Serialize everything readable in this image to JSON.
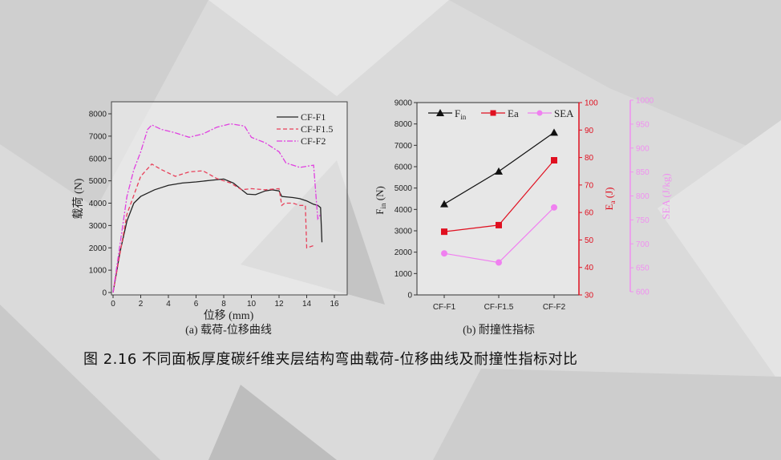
{
  "caption": "图 2.16 不同面板厚度碳纤维夹层结构弯曲载荷-位移曲线及耐撞性指标对比",
  "chart_data": [
    {
      "type": "line",
      "subtitle": "(a) 载荷-位移曲线",
      "xlabel": "位移 (mm)",
      "ylabel": "载荷 (N)",
      "xlim": [
        0,
        16
      ],
      "ylim": [
        0,
        8000
      ],
      "xticks": [
        0,
        2,
        4,
        6,
        8,
        10,
        12,
        14,
        16
      ],
      "yticks": [
        0,
        1000,
        2000,
        3000,
        4000,
        5000,
        6000,
        7000,
        8000
      ],
      "legend_position": "top-right",
      "grid": false,
      "series": [
        {
          "name": "CF-F1",
          "color": "#222222",
          "style": "solid",
          "x": [
            0,
            0.5,
            1,
            1.5,
            2,
            3,
            4,
            5,
            6,
            7,
            8,
            8.7,
            9.3,
            9.7,
            10.3,
            11,
            11.5,
            12,
            12.2,
            13,
            13.5,
            14,
            14.5,
            14.8,
            15,
            15.1
          ],
          "y": [
            0,
            1800,
            3200,
            4000,
            4300,
            4600,
            4800,
            4900,
            4950,
            5020,
            5080,
            4900,
            4600,
            4400,
            4380,
            4550,
            4600,
            4550,
            4300,
            4250,
            4200,
            4100,
            3950,
            3900,
            3800,
            2250
          ]
        },
        {
          "name": "CF-F1.5",
          "color": "#e8405a",
          "style": "dash",
          "x": [
            0,
            1,
            2,
            2.8,
            3.5,
            4.5,
            5.5,
            6.5,
            7.5,
            8.5,
            9.3,
            10,
            11,
            12,
            12.2,
            12.4,
            13,
            13.5,
            13.9,
            14,
            14.5
          ],
          "y": [
            0,
            3500,
            5200,
            5750,
            5500,
            5200,
            5400,
            5450,
            5100,
            4900,
            4600,
            4650,
            4600,
            4650,
            3900,
            4000,
            4000,
            3900,
            3900,
            2000,
            2100
          ]
        },
        {
          "name": "CF-F2",
          "color": "#e040e0",
          "style": "dashdot",
          "x": [
            0,
            1,
            1.5,
            2,
            2.5,
            2.8,
            3.5,
            4.5,
            5.5,
            6.5,
            7.5,
            8.5,
            9.5,
            10,
            11,
            12,
            12.5,
            13.5,
            14.5,
            14.8,
            15
          ],
          "y": [
            0,
            4300,
            5500,
            6300,
            7300,
            7500,
            7300,
            7150,
            6950,
            7100,
            7400,
            7550,
            7450,
            6950,
            6700,
            6300,
            5800,
            5600,
            5700,
            3300,
            3500
          ]
        }
      ]
    },
    {
      "type": "line",
      "subtitle": "(b) 耐撞性指标",
      "categories": [
        "CF-F1",
        "CF-F1.5",
        "CF-F2"
      ],
      "axes": [
        {
          "label": "Fin (N)",
          "label_main": "F",
          "label_sub": "in",
          "label_unit": " (N)",
          "side": "left",
          "color": "#222222",
          "ylim": [
            0,
            9000
          ],
          "ticks": [
            0,
            1000,
            2000,
            3000,
            4000,
            5000,
            6000,
            7000,
            8000,
            9000
          ]
        },
        {
          "label": "Ea (J)",
          "label_main": "E",
          "label_sub": "a",
          "label_unit": " (J)",
          "side": "right",
          "color": "#e01020",
          "ylim": [
            30,
            100
          ],
          "ticks": [
            30,
            40,
            50,
            60,
            70,
            80,
            90,
            100
          ]
        },
        {
          "label": "SEA (J/kg)",
          "side": "right-outer",
          "color": "#f090f0",
          "ylim": [
            600,
            1000
          ],
          "ticks": [
            600,
            650,
            700,
            750,
            800,
            850,
            900,
            950,
            1000
          ]
        }
      ],
      "legend_position": "top",
      "series": [
        {
          "name": "Fin",
          "name_main": "F",
          "name_sub": "in",
          "axis": 0,
          "color": "#111111",
          "marker": "triangle",
          "values": [
            4250,
            5780,
            7600
          ]
        },
        {
          "name": "Ea",
          "axis": 1,
          "color": "#e01020",
          "marker": "square",
          "values": [
            53,
            55.4,
            79
          ]
        },
        {
          "name": "SEA",
          "axis": 2,
          "color": "#f080f0",
          "marker": "circle",
          "values": [
            680,
            661,
            776
          ]
        }
      ]
    }
  ]
}
